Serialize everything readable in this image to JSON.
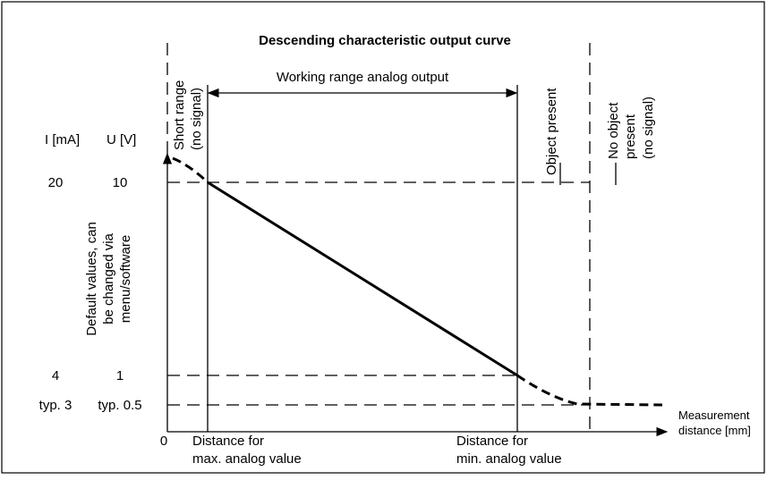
{
  "title": "Descending characteristic output curve",
  "axis_headers": {
    "current": "I [mA]",
    "voltage": "U [V]"
  },
  "levels": [
    {
      "current": "20",
      "voltage": "10"
    },
    {
      "current": "4",
      "voltage": "1"
    },
    {
      "current": "typ. 3",
      "voltage": "typ. 0.5"
    }
  ],
  "origin": "0",
  "x_axis_label": [
    "Measurement",
    "distance [mm]"
  ],
  "distance_labels": {
    "max": [
      "Distance for",
      "max. analog value"
    ],
    "min": [
      "Distance for",
      "min. analog value"
    ]
  },
  "working_range": "Working range analog output",
  "zones": {
    "short_range": [
      "Short range",
      "(no signal)"
    ],
    "object_present": [
      "Object present"
    ],
    "no_object": [
      "No object",
      "present",
      "(no signal)"
    ]
  },
  "note": [
    "Default values, can",
    "be changed via",
    "menu/software"
  ]
}
